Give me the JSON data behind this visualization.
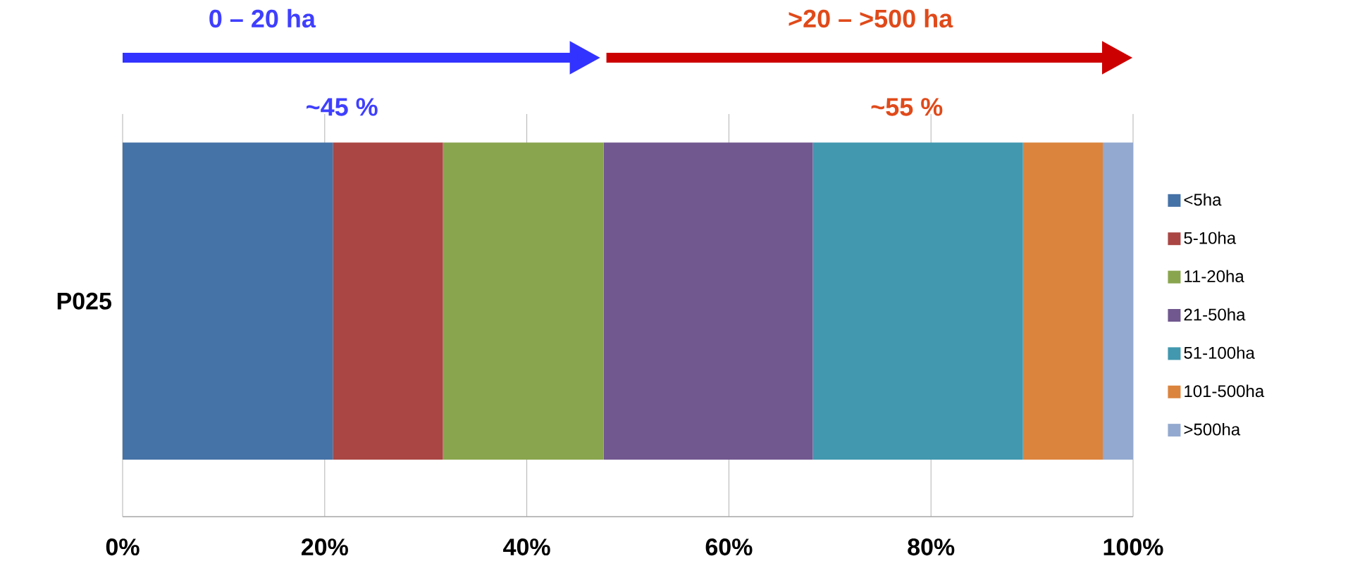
{
  "chart_data": {
    "type": "bar",
    "orientation": "horizontal",
    "stacked": true,
    "categories": [
      "P025"
    ],
    "series": [
      {
        "name": "<5ha",
        "color": "#4572a7",
        "values": [
          20.8
        ]
      },
      {
        "name": "5-10ha",
        "color": "#aa4643",
        "values": [
          10.9
        ]
      },
      {
        "name": "11-20ha",
        "color": "#89a54e",
        "values": [
          15.9
        ]
      },
      {
        "name": "21-50ha",
        "color": "#71588f",
        "values": [
          20.7
        ]
      },
      {
        "name": "51-100ha",
        "color": "#4198af",
        "values": [
          20.8
        ]
      },
      {
        "name": "101-500ha",
        "color": "#db843d",
        "values": [
          7.9
        ]
      },
      {
        "name": ">500ha",
        "color": "#93a9cf",
        "values": [
          3.0
        ]
      }
    ],
    "xlim": [
      0,
      100
    ],
    "xticks": [
      {
        "value": 0,
        "label": "0%"
      },
      {
        "value": 20,
        "label": "20%"
      },
      {
        "value": 40,
        "label": "40%"
      },
      {
        "value": 60,
        "label": "60%"
      },
      {
        "value": 80,
        "label": "80%"
      },
      {
        "value": 100,
        "label": "100%"
      }
    ],
    "grid": "x",
    "legend": "right",
    "annotations": [
      "0 – 20 ha",
      ">20 – >500 ha",
      "~45 %",
      "~55 %"
    ]
  }
}
